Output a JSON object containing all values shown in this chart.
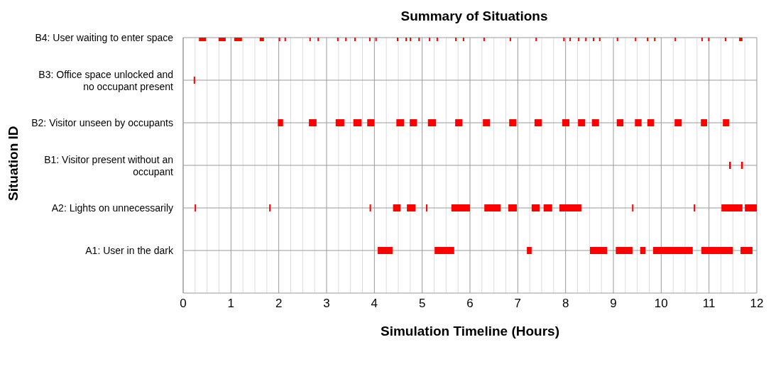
{
  "chart_data": {
    "type": "bar",
    "orientation": "horizontal",
    "title": "Summary of Situations",
    "xlabel": "Simulation Timeline (Hours)",
    "ylabel": "Situation ID",
    "categories": [
      "B4: User waiting to enter space",
      "B3: Office space unlocked and no occupant present",
      "B2: Visitor unseen by occupants",
      "B1: Visitor present without an occupant",
      "A2: Lights on unnecessarily",
      "A1: User in the dark"
    ],
    "xlim": [
      0,
      12
    ],
    "xticks": [
      0,
      1,
      2,
      3,
      4,
      5,
      6,
      7,
      8,
      9,
      10,
      11,
      12
    ],
    "grid": true,
    "series": [
      {
        "color": "#ff0000",
        "base": [
          0.33,
          0.22,
          1.98,
          11.42,
          0.24,
          4.07
        ],
        "values": [
          0.15,
          0.03,
          0.11,
          0.04,
          0.03,
          0.31
        ]
      },
      {
        "color": "#ff0000",
        "base": [
          0.74,
          null,
          2.63,
          11.67,
          1.8,
          5.26
        ],
        "values": [
          0.15,
          null,
          0.16,
          0.04,
          0.03,
          0.41
        ]
      },
      {
        "color": "#ff0000",
        "base": [
          1.07,
          null,
          3.19,
          null,
          3.9,
          7.19
        ],
        "values": [
          0.16,
          null,
          0.18,
          null,
          0.03,
          0.1
        ]
      },
      {
        "color": "#ff0000",
        "base": [
          1.6,
          null,
          3.56,
          null,
          4.39,
          8.51
        ],
        "values": [
          0.09,
          null,
          0.17,
          null,
          0.16,
          0.36
        ]
      },
      {
        "color": "#ff0000",
        "base": [
          2.0,
          null,
          3.85,
          null,
          4.68,
          9.05
        ],
        "values": [
          0.03,
          null,
          0.15,
          null,
          0.18,
          0.35
        ]
      },
      {
        "color": "#ff0000",
        "base": [
          2.12,
          null,
          4.46,
          null,
          5.08,
          9.56
        ],
        "values": [
          0.03,
          null,
          0.16,
          null,
          0.03,
          0.11
        ]
      },
      {
        "color": "#ff0000",
        "base": [
          2.64,
          null,
          4.74,
          null,
          5.61,
          9.83
        ],
        "values": [
          0.03,
          null,
          0.15,
          null,
          0.39,
          0.83
        ]
      },
      {
        "color": "#ff0000",
        "base": [
          2.81,
          null,
          5.12,
          null,
          6.3,
          10.84
        ],
        "values": [
          0.03,
          null,
          0.17,
          null,
          0.34,
          0.66
        ]
      },
      {
        "color": "#ff0000",
        "base": [
          3.22,
          null,
          5.69,
          null,
          6.8,
          11.66
        ],
        "values": [
          0.03,
          null,
          0.15,
          null,
          0.18,
          0.25
        ]
      },
      {
        "color": "#ff0000",
        "base": [
          3.39,
          null,
          6.27,
          null,
          7.29,
          null
        ],
        "values": [
          0.03,
          null,
          0.15,
          null,
          0.17,
          null
        ]
      },
      {
        "color": "#ff0000",
        "base": [
          3.58,
          null,
          6.82,
          null,
          7.54,
          null
        ],
        "values": [
          0.03,
          null,
          0.15,
          null,
          0.18,
          null
        ]
      },
      {
        "color": "#ff0000",
        "base": [
          3.89,
          null,
          7.35,
          null,
          7.87,
          null
        ],
        "values": [
          0.03,
          null,
          0.15,
          null,
          0.46,
          null
        ]
      },
      {
        "color": "#ff0000",
        "base": [
          4.02,
          null,
          7.93,
          null,
          9.39,
          null
        ],
        "values": [
          0.03,
          null,
          0.15,
          null,
          0.03,
          null
        ]
      },
      {
        "color": "#ff0000",
        "base": [
          4.47,
          null,
          8.26,
          null,
          10.68,
          null
        ],
        "values": [
          0.03,
          null,
          0.15,
          null,
          0.03,
          null
        ]
      },
      {
        "color": "#ff0000",
        "base": [
          4.65,
          null,
          8.55,
          null,
          11.26,
          null
        ],
        "values": [
          0.03,
          null,
          0.15,
          null,
          0.44,
          null
        ]
      },
      {
        "color": "#ff0000",
        "base": [
          4.74,
          null,
          9.07,
          null,
          11.75,
          null
        ],
        "values": [
          0.03,
          null,
          0.14,
          null,
          0.25,
          null
        ]
      },
      {
        "color": "#ff0000",
        "base": [
          4.92,
          null,
          9.45,
          null,
          null,
          null
        ],
        "values": [
          0.03,
          null,
          0.14,
          null,
          null,
          null
        ]
      },
      {
        "color": "#ff0000",
        "base": [
          5.14,
          null,
          9.71,
          null,
          null,
          null
        ],
        "values": [
          0.03,
          null,
          0.14,
          null,
          null,
          null
        ]
      },
      {
        "color": "#ff0000",
        "base": [
          5.3,
          null,
          10.28,
          null,
          null,
          null
        ],
        "values": [
          0.03,
          null,
          0.15,
          null,
          null,
          null
        ]
      },
      {
        "color": "#ff0000",
        "base": [
          5.69,
          null,
          10.83,
          null,
          null,
          null
        ],
        "values": [
          0.03,
          null,
          0.13,
          null,
          null,
          null
        ]
      },
      {
        "color": "#ff0000",
        "base": [
          5.85,
          null,
          11.29,
          null,
          null,
          null
        ],
        "values": [
          0.03,
          null,
          0.13,
          null,
          null,
          null
        ]
      },
      {
        "color": "#ff0000",
        "base": [
          6.28,
          null,
          null,
          null,
          null,
          null
        ],
        "values": [
          0.03,
          null,
          null,
          null,
          null,
          null
        ]
      },
      {
        "color": "#ff0000",
        "base": [
          6.83,
          null,
          null,
          null,
          null,
          null
        ],
        "values": [
          0.03,
          null,
          null,
          null,
          null,
          null
        ]
      },
      {
        "color": "#ff0000",
        "base": [
          7.37,
          null,
          null,
          null,
          null,
          null
        ],
        "values": [
          0.03,
          null,
          null,
          null,
          null,
          null
        ]
      },
      {
        "color": "#ff0000",
        "base": [
          7.95,
          null,
          null,
          null,
          null,
          null
        ],
        "values": [
          0.03,
          null,
          null,
          null,
          null,
          null
        ]
      },
      {
        "color": "#ff0000",
        "base": [
          8.08,
          null,
          null,
          null,
          null,
          null
        ],
        "values": [
          0.03,
          null,
          null,
          null,
          null,
          null
        ]
      },
      {
        "color": "#ff0000",
        "base": [
          8.26,
          null,
          null,
          null,
          null,
          null
        ],
        "values": [
          0.03,
          null,
          null,
          null,
          null,
          null
        ]
      },
      {
        "color": "#ff0000",
        "base": [
          8.41,
          null,
          null,
          null,
          null,
          null
        ],
        "values": [
          0.03,
          null,
          null,
          null,
          null,
          null
        ]
      },
      {
        "color": "#ff0000",
        "base": [
          8.57,
          null,
          null,
          null,
          null,
          null
        ],
        "values": [
          0.03,
          null,
          null,
          null,
          null,
          null
        ]
      },
      {
        "color": "#ff0000",
        "base": [
          8.7,
          null,
          null,
          null,
          null,
          null
        ],
        "values": [
          0.03,
          null,
          null,
          null,
          null,
          null
        ]
      },
      {
        "color": "#ff0000",
        "base": [
          9.07,
          null,
          null,
          null,
          null,
          null
        ],
        "values": [
          0.03,
          null,
          null,
          null,
          null,
          null
        ]
      },
      {
        "color": "#ff0000",
        "base": [
          9.45,
          null,
          null,
          null,
          null,
          null
        ],
        "values": [
          0.03,
          null,
          null,
          null,
          null,
          null
        ]
      },
      {
        "color": "#ff0000",
        "base": [
          9.7,
          null,
          null,
          null,
          null,
          null
        ],
        "values": [
          0.03,
          null,
          null,
          null,
          null,
          null
        ]
      },
      {
        "color": "#ff0000",
        "base": [
          9.85,
          null,
          null,
          null,
          null,
          null
        ],
        "values": [
          0.03,
          null,
          null,
          null,
          null,
          null
        ]
      },
      {
        "color": "#ff0000",
        "base": [
          10.28,
          null,
          null,
          null,
          null,
          null
        ],
        "values": [
          0.03,
          null,
          null,
          null,
          null,
          null
        ]
      },
      {
        "color": "#ff0000",
        "base": [
          10.84,
          null,
          null,
          null,
          null,
          null
        ],
        "values": [
          0.03,
          null,
          null,
          null,
          null,
          null
        ]
      },
      {
        "color": "#ff0000",
        "base": [
          10.98,
          null,
          null,
          null,
          null,
          null
        ],
        "values": [
          0.03,
          null,
          null,
          null,
          null,
          null
        ]
      },
      {
        "color": "#ff0000",
        "base": [
          11.33,
          null,
          null,
          null,
          null,
          null
        ],
        "values": [
          0.03,
          null,
          null,
          null,
          null,
          null
        ]
      },
      {
        "color": "#ff0000",
        "base": [
          11.63,
          null,
          null,
          null,
          null,
          null
        ],
        "values": [
          0.07,
          null,
          null,
          null,
          null,
          null
        ]
      }
    ]
  }
}
